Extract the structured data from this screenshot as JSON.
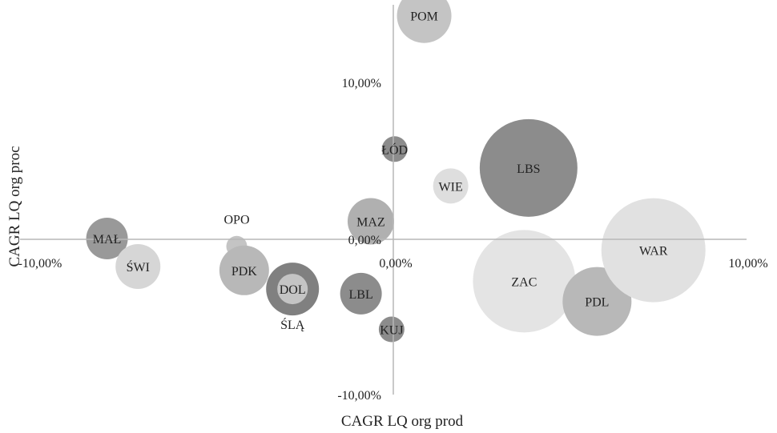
{
  "chart_data": {
    "type": "scatter",
    "subtype": "bubble",
    "title": "",
    "xlabel": "CAGR LQ org prod",
    "ylabel": "CAGR LQ org proc",
    "xlim": [
      -0.1,
      0.1
    ],
    "ylim": [
      -0.1,
      0.1
    ],
    "x_ticks": [
      {
        "value": -0.1,
        "label": "-10,00%"
      },
      {
        "value": 0.0,
        "label": "0,00%"
      },
      {
        "value": 0.1,
        "label": "10,00%"
      }
    ],
    "y_ticks": [
      {
        "value": 0.1,
        "label": "10,00%"
      },
      {
        "value": 0.0,
        "label": "0,00%"
      },
      {
        "value": -0.1,
        "label": "-10,00%"
      }
    ],
    "grid": false,
    "legend": "none",
    "points": [
      {
        "label": "POM",
        "x": 0.0092,
        "y": 0.1425,
        "size": 34,
        "color": "#c4c4c4",
        "label_pos": "center"
      },
      {
        "label": "ŁÓD",
        "x": 0.0004,
        "y": 0.0575,
        "size": 16,
        "color": "#8c8c8c",
        "label_pos": "center"
      },
      {
        "label": "LBS",
        "x": 0.0403,
        "y": 0.0455,
        "size": 61,
        "color": "#8c8c8c",
        "label_pos": "center"
      },
      {
        "label": "WIE",
        "x": 0.0171,
        "y": 0.034,
        "size": 22,
        "color": "#dedede",
        "label_pos": "center"
      },
      {
        "label": "MAZ",
        "x": -0.0066,
        "y": 0.0115,
        "size": 29,
        "color": "#b0b0b0",
        "label_pos": "center"
      },
      {
        "label": "OPO",
        "x": -0.046,
        "y": -0.0045,
        "size": 13,
        "color": "#c4c4c4",
        "label_pos": "above"
      },
      {
        "label": "MAŁ",
        "x": -0.0841,
        "y": 0.0005,
        "size": 26,
        "color": "#999999",
        "label_pos": "center"
      },
      {
        "label": "ŚWI",
        "x": -0.075,
        "y": -0.0175,
        "size": 28,
        "color": "#d6d6d6",
        "label_pos": "center"
      },
      {
        "label": "PDK",
        "x": -0.0438,
        "y": -0.02,
        "size": 31,
        "color": "#b8b8b8",
        "label_pos": "center"
      },
      {
        "label": "DOL",
        "x": -0.0296,
        "y": -0.032,
        "size": 33,
        "color": "#808080",
        "label_pos": "center",
        "inner": {
          "size": 19,
          "color": "#c4c4c4"
        }
      },
      {
        "label": "ŚLĄ",
        "x": -0.0296,
        "y": -0.032,
        "size": 0,
        "color": "#808080",
        "label_pos": "below"
      },
      {
        "label": "LBL",
        "x": -0.0095,
        "y": -0.035,
        "size": 26,
        "color": "#8c8c8c",
        "label_pos": "center"
      },
      {
        "label": "KUJ",
        "x": -0.0005,
        "y": -0.058,
        "size": 16,
        "color": "#8c8c8c",
        "label_pos": "center"
      },
      {
        "label": "ZAC",
        "x": 0.039,
        "y": -0.027,
        "size": 64,
        "color": "#e4e4e4",
        "label_pos": "center"
      },
      {
        "label": "PDL",
        "x": 0.0607,
        "y": -0.04,
        "size": 43,
        "color": "#b8b8b8",
        "label_pos": "center"
      },
      {
        "label": "WAR",
        "x": 0.0775,
        "y": -0.007,
        "size": 65,
        "color": "#e1e1e1",
        "label_pos": "center"
      }
    ]
  }
}
